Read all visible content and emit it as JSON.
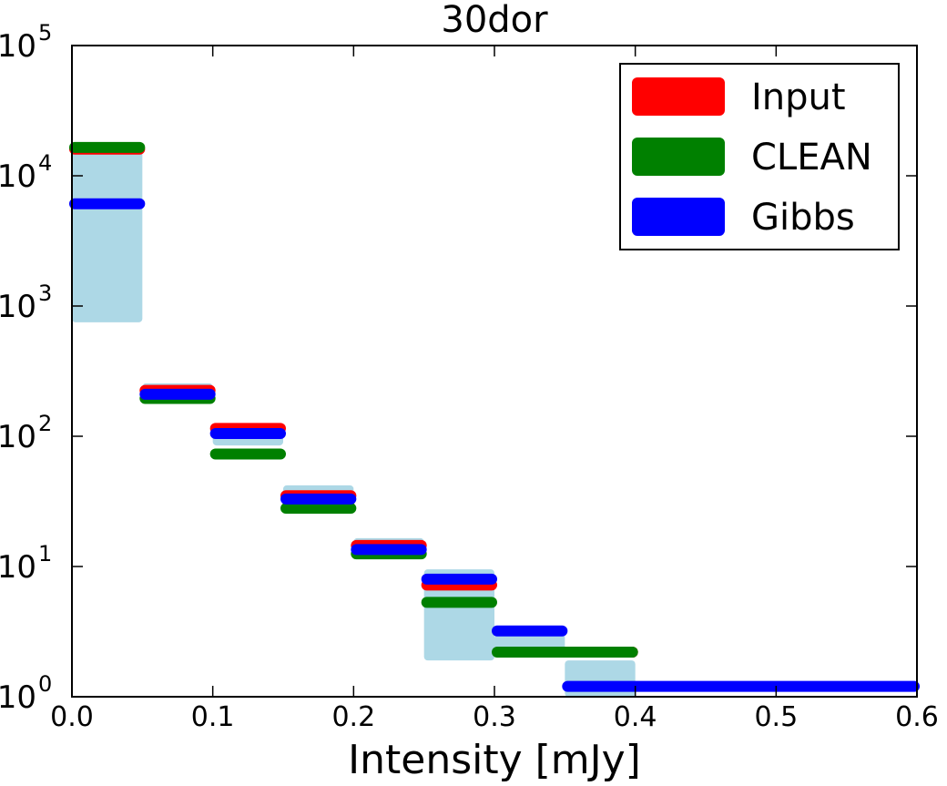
{
  "chart_data": {
    "type": "step-histogram",
    "title": "30dor",
    "xlabel": "Intensity [mJy]",
    "ylabel": "",
    "xlim": [
      0.0,
      0.6
    ],
    "ylim": [
      1,
      100000
    ],
    "yscale": "log",
    "x_ticks": [
      "0.0",
      "0.1",
      "0.2",
      "0.3",
      "0.4",
      "0.5",
      "0.6"
    ],
    "y_ticks": [
      {
        "base": "10",
        "exp": "0",
        "value": 1
      },
      {
        "base": "10",
        "exp": "1",
        "value": 10
      },
      {
        "base": "10",
        "exp": "2",
        "value": 100
      },
      {
        "base": "10",
        "exp": "3",
        "value": 1000
      },
      {
        "base": "10",
        "exp": "4",
        "value": 10000
      },
      {
        "base": "10",
        "exp": "5",
        "value": 100000
      }
    ],
    "uncertainty_bands": {
      "color": "#add8e6",
      "bins": [
        {
          "x0": 0.0,
          "x1": 0.05,
          "lo": 750,
          "hi": 15500
        },
        {
          "x0": 0.05,
          "x1": 0.1,
          "lo": 180,
          "hi": 255
        },
        {
          "x0": 0.1,
          "x1": 0.15,
          "lo": 85,
          "hi": 125
        },
        {
          "x0": 0.15,
          "x1": 0.2,
          "lo": 27,
          "hi": 42
        },
        {
          "x0": 0.2,
          "x1": 0.25,
          "lo": 11.5,
          "hi": 16.5
        },
        {
          "x0": 0.25,
          "x1": 0.3,
          "lo": 1.9,
          "hi": 9.5
        },
        {
          "x0": 0.3,
          "x1": 0.35,
          "lo": 2.0,
          "hi": 3.0
        },
        {
          "x0": 0.35,
          "x1": 0.4,
          "lo": 1.0,
          "hi": 1.9
        }
      ]
    },
    "series": [
      {
        "name": "Input",
        "color": "#ff0000",
        "bins": [
          {
            "x0": 0.0,
            "x1": 0.05,
            "value": 16000
          },
          {
            "x0": 0.05,
            "x1": 0.1,
            "value": 225
          },
          {
            "x0": 0.1,
            "x1": 0.15,
            "value": 115
          },
          {
            "x0": 0.15,
            "x1": 0.2,
            "value": 35
          },
          {
            "x0": 0.2,
            "x1": 0.25,
            "value": 14.5
          },
          {
            "x0": 0.25,
            "x1": 0.3,
            "value": 7.2
          },
          {
            "x0": 0.35,
            "x1": 0.4,
            "value": 2.2
          }
        ]
      },
      {
        "name": "CLEAN",
        "color": "#008000",
        "bins": [
          {
            "x0": 0.0,
            "x1": 0.05,
            "value": 16500
          },
          {
            "x0": 0.05,
            "x1": 0.1,
            "value": 195
          },
          {
            "x0": 0.1,
            "x1": 0.15,
            "value": 73
          },
          {
            "x0": 0.15,
            "x1": 0.2,
            "value": 28
          },
          {
            "x0": 0.2,
            "x1": 0.25,
            "value": 12.5
          },
          {
            "x0": 0.25,
            "x1": 0.3,
            "value": 5.3
          },
          {
            "x0": 0.3,
            "x1": 0.4,
            "value": 2.2
          }
        ]
      },
      {
        "name": "Gibbs",
        "color": "#0000ff",
        "bins": [
          {
            "x0": 0.0,
            "x1": 0.05,
            "value": 6100
          },
          {
            "x0": 0.05,
            "x1": 0.1,
            "value": 210
          },
          {
            "x0": 0.1,
            "x1": 0.15,
            "value": 105
          },
          {
            "x0": 0.15,
            "x1": 0.2,
            "value": 33
          },
          {
            "x0": 0.2,
            "x1": 0.25,
            "value": 13.5
          },
          {
            "x0": 0.25,
            "x1": 0.3,
            "value": 8.0
          },
          {
            "x0": 0.3,
            "x1": 0.35,
            "value": 3.2
          },
          {
            "x0": 0.35,
            "x1": 0.6,
            "value": 1.2
          }
        ]
      }
    ],
    "legend": {
      "position": "top-right",
      "entries": [
        "Input",
        "CLEAN",
        "Gibbs"
      ]
    }
  }
}
